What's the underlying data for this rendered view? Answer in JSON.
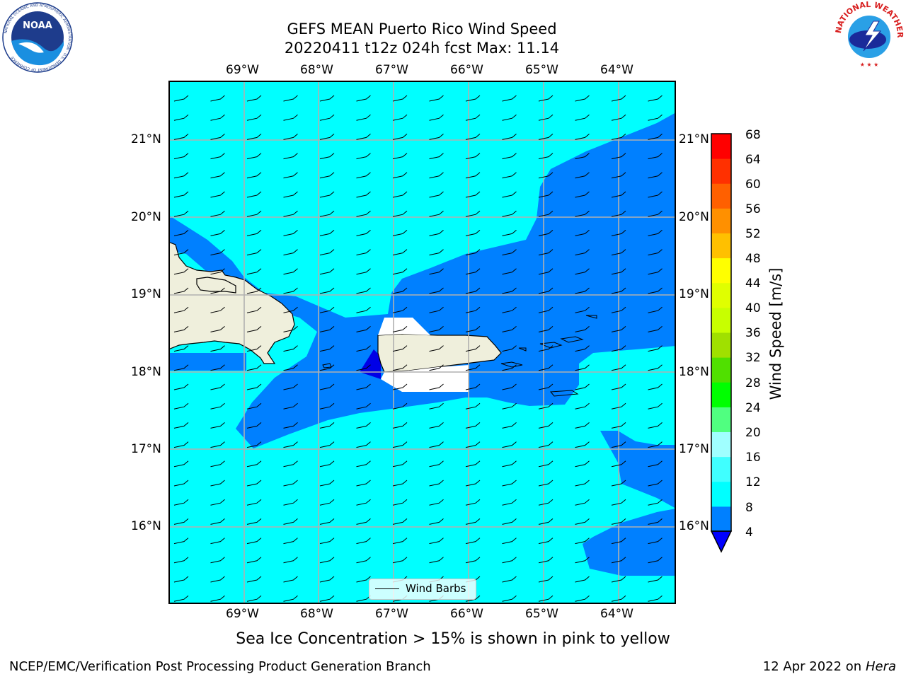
{
  "header": {
    "title_line1": "GEFS MEAN Puerto Rico Wind Speed",
    "title_line2": "20220411 t12z 024h fcst   Max: 11.14"
  },
  "logos": {
    "noara": {
      "text": "NOAA",
      "ring_text": "NATIONAL OCEANIC AND ATMOSPHERIC ADMINISTRATION · U.S. DEPARTMENT OF COMMERCE"
    },
    "nws": {
      "ring_text": "NATIONAL WEATHER SERVICE"
    }
  },
  "map": {
    "lon_ticks": [
      "69°W",
      "68°W",
      "67°W",
      "66°W",
      "65°W",
      "64°W"
    ],
    "lat_ticks": [
      "21°N",
      "20°N",
      "19°N",
      "18°N",
      "17°N",
      "16°N"
    ],
    "legend_label": "Wind Barbs",
    "colors": {
      "ocean_8_12": "#00ffff",
      "ocean_4_8": "#0080ff",
      "ocean_0_4": "#0000e6",
      "land": "#efefdc",
      "grid": "#b0b0b0"
    }
  },
  "colorbar": {
    "label": "Wind Speed [m/s]",
    "ticks": [
      "68",
      "64",
      "60",
      "56",
      "52",
      "48",
      "44",
      "40",
      "36",
      "32",
      "28",
      "24",
      "20",
      "16",
      "12",
      "8",
      "4"
    ],
    "colors": [
      "#0000ff",
      "#0080ff",
      "#00ffff",
      "#40ffff",
      "#a0ffff",
      "#50ff80",
      "#00ff00",
      "#50e000",
      "#a0e000",
      "#c8ff00",
      "#e0ff00",
      "#ffff00",
      "#ffc000",
      "#ff9000",
      "#ff6000",
      "#ff3000",
      "#ff0000"
    ]
  },
  "caption": "Sea Ice Concentration > 15% is shown in pink to yellow",
  "footer": {
    "left": "NCEP/EMC/Verification Post Processing Product Generation Branch",
    "right_date": "12 Apr 2022 on ",
    "right_host": "Hera"
  }
}
